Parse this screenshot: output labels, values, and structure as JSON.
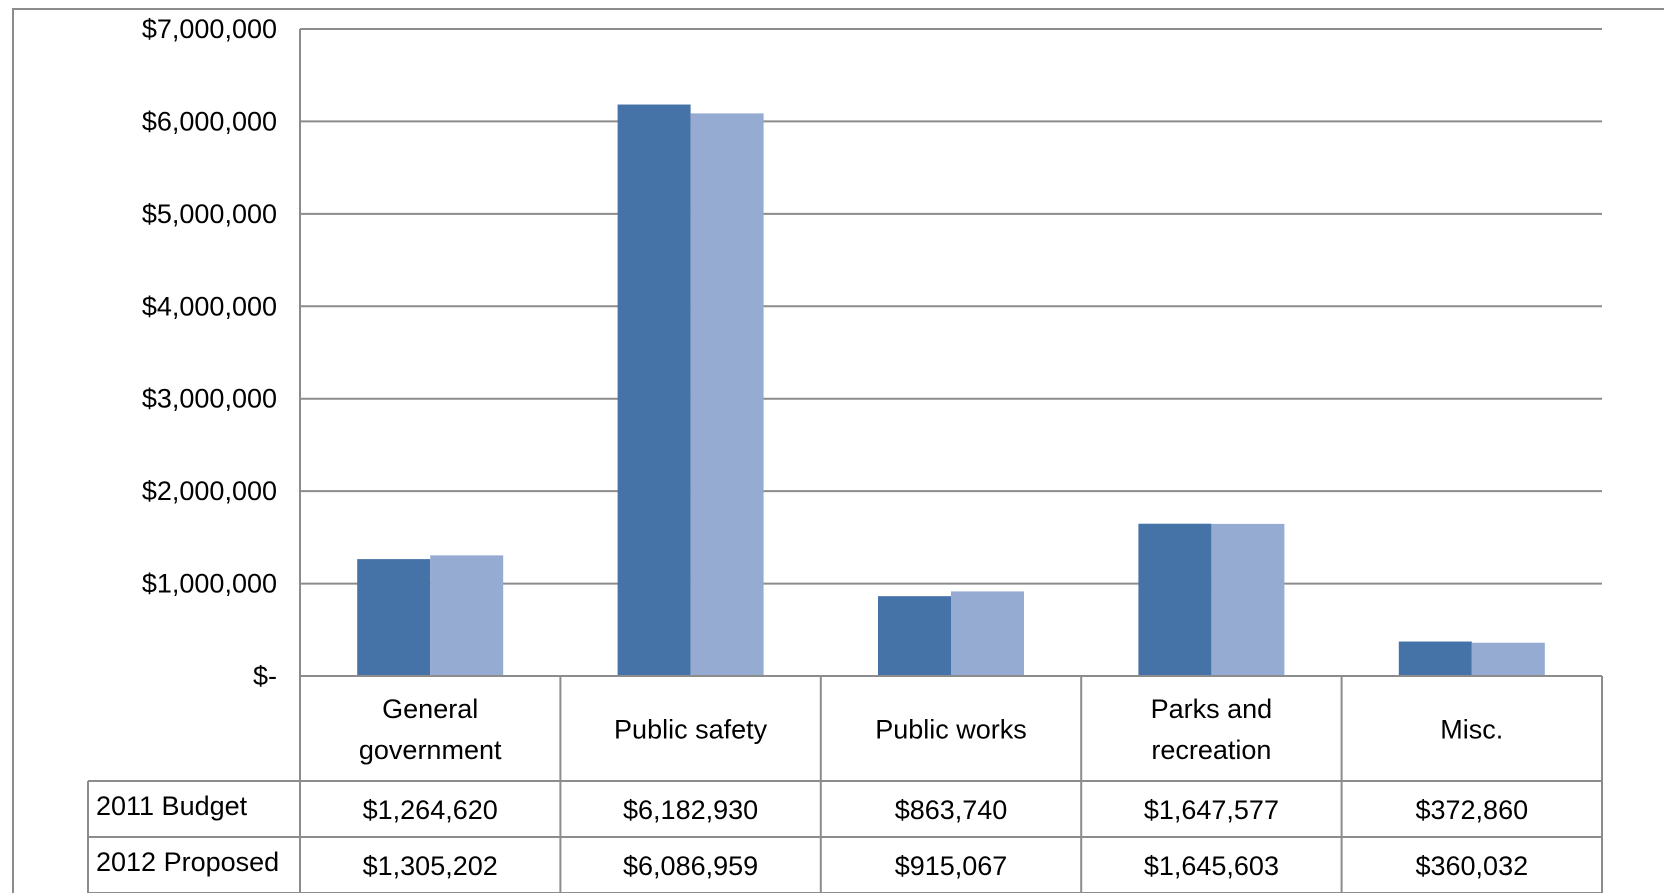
{
  "chart_data": {
    "type": "bar",
    "title": "",
    "xlabel": "",
    "ylabel": "",
    "ylim": [
      0,
      7000000
    ],
    "y_ticks": [
      {
        "value": 0,
        "label": "$-"
      },
      {
        "value": 1000000,
        "label": "$1,000,000"
      },
      {
        "value": 2000000,
        "label": "$2,000,000"
      },
      {
        "value": 3000000,
        "label": "$3,000,000"
      },
      {
        "value": 4000000,
        "label": "$4,000,000"
      },
      {
        "value": 5000000,
        "label": "$5,000,000"
      },
      {
        "value": 6000000,
        "label": "$6,000,000"
      },
      {
        "value": 7000000,
        "label": "$7,000,000"
      }
    ],
    "grid": true,
    "legend": "data table below chart",
    "categories": [
      [
        "General",
        "government"
      ],
      [
        "Public safety"
      ],
      [
        "Public works"
      ],
      [
        "Parks and",
        "recreation"
      ],
      [
        "Misc."
      ]
    ],
    "series": [
      {
        "name": "2011 Budget",
        "color": "#4572a7",
        "values": [
          1264620,
          6182930,
          863740,
          1647577,
          372860
        ],
        "labels": [
          "$1,264,620",
          "$6,182,930",
          "$863,740",
          "$1,647,577",
          "$372,860"
        ]
      },
      {
        "name": "2012 Proposed",
        "color": "#95abd2",
        "values": [
          1305202,
          6086959,
          915067,
          1645603,
          360032
        ],
        "labels": [
          "$1,305,202",
          "$6,086,959",
          "$915,067",
          "$1,645,603",
          "$360,032"
        ]
      }
    ]
  }
}
